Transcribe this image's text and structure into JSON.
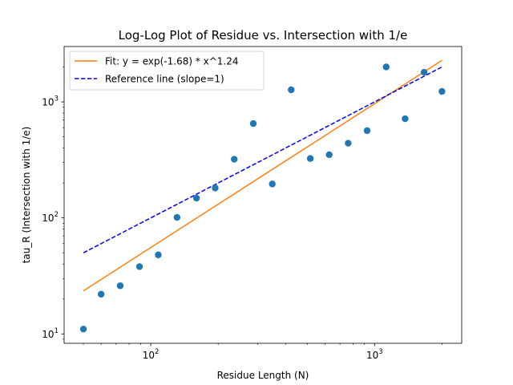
{
  "chart_data": {
    "type": "scatter",
    "title": "Log-Log Plot of Residue vs. Intersection with 1/e",
    "xlabel": "Residue Length (N)",
    "ylabel": "tau_R (Intersection with 1/e)",
    "xscale": "log",
    "yscale": "log",
    "xlim": [
      41,
      2450
    ],
    "ylim": [
      8.3,
      3000
    ],
    "x_ticks": [
      {
        "value": 100,
        "label": "10",
        "exp": "2"
      },
      {
        "value": 1000,
        "label": "10",
        "exp": "3"
      }
    ],
    "y_ticks": [
      {
        "value": 10,
        "label": "10",
        "exp": "1"
      },
      {
        "value": 100,
        "label": "10",
        "exp": "2"
      },
      {
        "value": 1000,
        "label": "10",
        "exp": "3"
      }
    ],
    "grid": false,
    "legend_position": "upper-left",
    "series": [
      {
        "name": "",
        "kind": "scatter",
        "color": "#1f77b4",
        "points": [
          [
            50,
            11
          ],
          [
            60,
            22
          ],
          [
            73,
            26
          ],
          [
            89,
            38
          ],
          [
            108,
            48
          ],
          [
            131,
            101
          ],
          [
            160,
            148
          ],
          [
            194,
            181
          ],
          [
            236,
            320
          ],
          [
            287,
            650
          ],
          [
            349,
            196
          ],
          [
            424,
            1270
          ],
          [
            516,
            325
          ],
          [
            627,
            350
          ],
          [
            762,
            440
          ],
          [
            926,
            565
          ],
          [
            1126,
            2000
          ],
          [
            1369,
            715
          ],
          [
            1664,
            1800
          ],
          [
            2000,
            1230
          ]
        ]
      },
      {
        "name": "Fit: y = exp(-1.68) * x^1.24",
        "kind": "line",
        "color": "#ff7f0e",
        "dash": "solid",
        "points": [
          [
            50,
            23.5
          ],
          [
            2000,
            2280
          ]
        ]
      },
      {
        "name": "Reference line (slope=1)",
        "kind": "line",
        "color": "#0000ff",
        "dash": "dashed",
        "points": [
          [
            50,
            50
          ],
          [
            2000,
            2000
          ]
        ]
      }
    ]
  }
}
